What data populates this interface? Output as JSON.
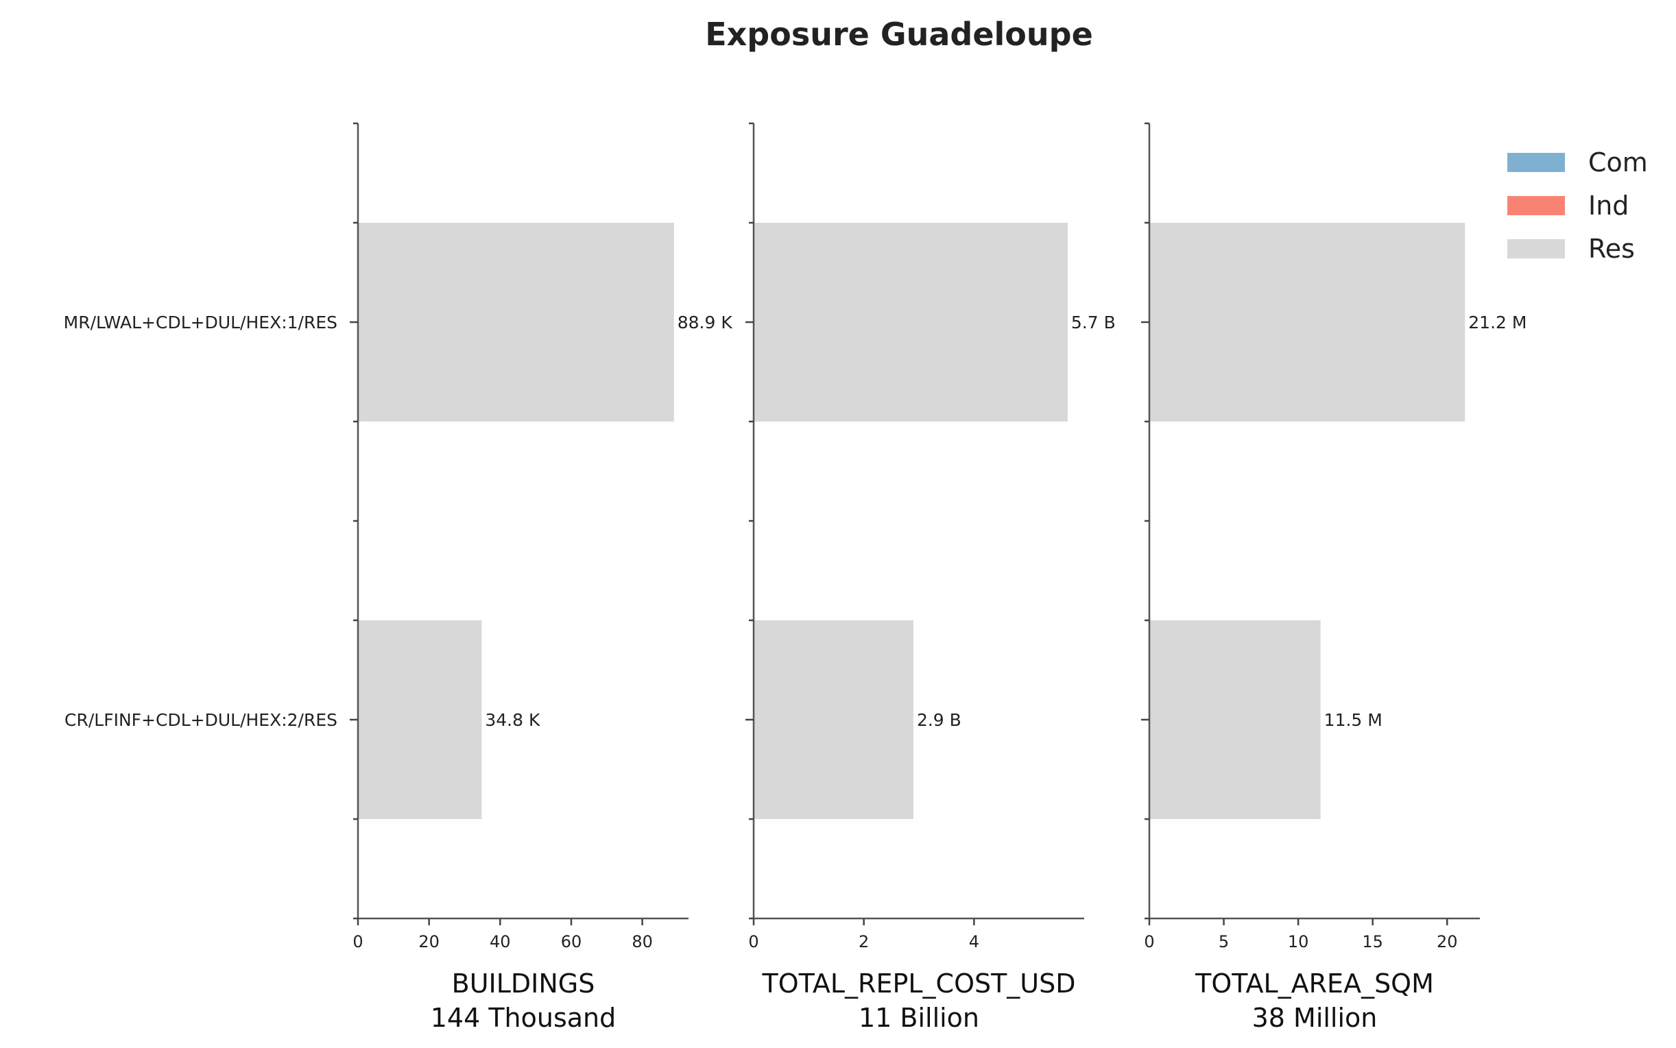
{
  "chart_data": {
    "type": "bar",
    "orientation": "horizontal",
    "title": "Exposure Guadeloupe",
    "categories": [
      "MR/LWAL+CDL+DUL/HEX:1/RES",
      "CR/LFINF+CDL+DUL/HEX:2/RES"
    ],
    "legend": {
      "placement": "top-right",
      "entries": [
        {
          "name": "Com",
          "color": "#7fb0d1"
        },
        {
          "name": "Ind",
          "color": "#f98373"
        },
        {
          "name": "Res",
          "color": "#d8d8d8"
        }
      ]
    },
    "grid": false,
    "panels": [
      {
        "xlabel": "BUILDINGS",
        "total_label": "144 Thousand",
        "xlim": [
          0,
          93
        ],
        "xticks": [
          0,
          20,
          40,
          60,
          80
        ],
        "series": [
          {
            "name": "Res",
            "values": [
              88.9,
              34.8
            ]
          }
        ],
        "data_labels": [
          "88.9 K",
          "34.8 K"
        ]
      },
      {
        "xlabel": "TOTAL_REPL_COST_USD",
        "total_label": "11 Billion",
        "xlim": [
          0,
          6.0
        ],
        "xticks": [
          0,
          2,
          4
        ],
        "series": [
          {
            "name": "Res",
            "values": [
              5.7,
              2.9
            ]
          }
        ],
        "data_labels": [
          "5.7 B",
          "2.9 B"
        ]
      },
      {
        "xlabel": "TOTAL_AREA_SQM",
        "total_label": "38 Million",
        "xlim": [
          0,
          22.2
        ],
        "xticks": [
          0,
          5,
          10,
          15,
          20
        ],
        "series": [
          {
            "name": "Res",
            "values": [
              21.2,
              11.5
            ]
          }
        ],
        "data_labels": [
          "21.2 M",
          "11.5 M"
        ]
      }
    ]
  }
}
